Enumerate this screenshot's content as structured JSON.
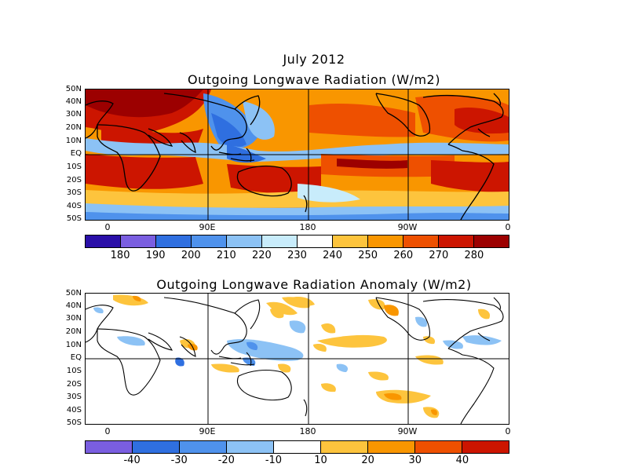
{
  "title_top_1": "July 2012",
  "title_top_2": "Outgoing Longwave Radiation (W/m2)",
  "title_bottom": "Outgoing Longwave Radiation Anomaly (W/m2)",
  "lat_labels": [
    "50N",
    "40N",
    "30N",
    "20N",
    "10N",
    "EQ",
    "10S",
    "20S",
    "30S",
    "40S",
    "50S"
  ],
  "lon_labels": [
    "0",
    "90E",
    "180",
    "90W",
    "0"
  ],
  "colorbar_top": {
    "ticks": [
      "180",
      "190",
      "200",
      "210",
      "220",
      "230",
      "240",
      "250",
      "260",
      "270",
      "280"
    ],
    "colors": [
      "#2a0fa8",
      "#7a5ee0",
      "#2f6fe0",
      "#4f92ec",
      "#8cc2f5",
      "#c8ecfb",
      "#ffffff",
      "#fdc43d",
      "#f99600",
      "#ee5000",
      "#cc1500",
      "#9c0000"
    ]
  },
  "colorbar_bottom": {
    "ticks": [
      "-40",
      "-30",
      "-20",
      "-10",
      "10",
      "20",
      "30",
      "40"
    ],
    "colors": [
      "#7a5ee0",
      "#2f6fe0",
      "#4f92ec",
      "#8cc2f5",
      "#ffffff",
      "#fdc43d",
      "#f99600",
      "#ee5000",
      "#cc1500"
    ]
  }
}
